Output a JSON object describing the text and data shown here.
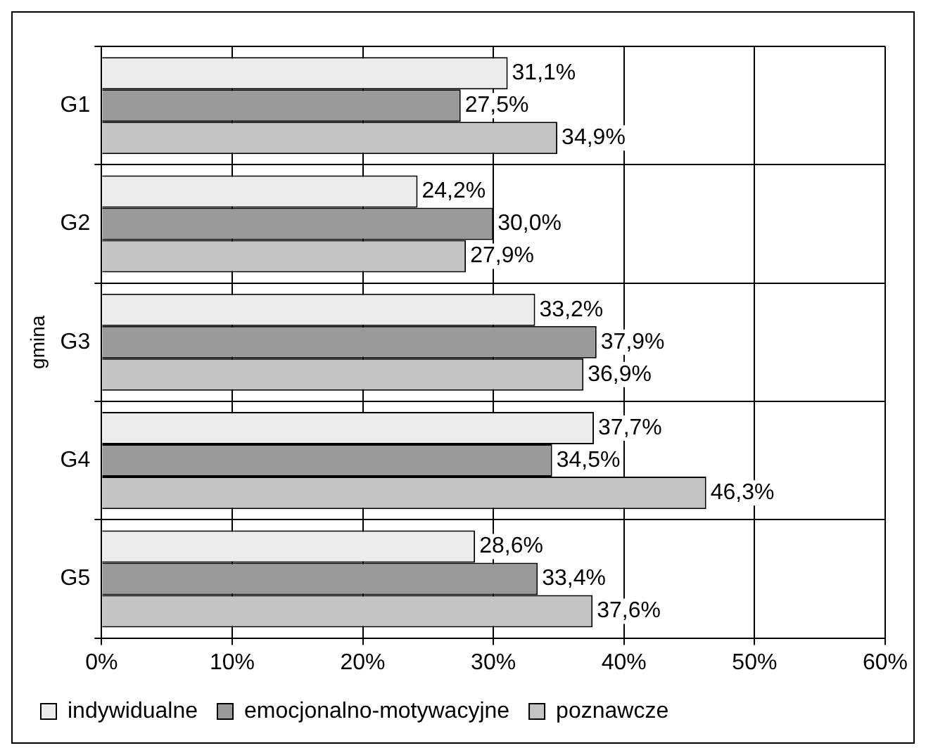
{
  "chart_data": {
    "type": "bar",
    "orientation": "horizontal",
    "ylabel": "gmina",
    "categories": [
      "G1",
      "G2",
      "G3",
      "G4",
      "G5"
    ],
    "series": [
      {
        "name": "indywidualne",
        "color": "#ececec",
        "values": [
          31.1,
          24.2,
          33.2,
          37.7,
          28.6
        ],
        "value_labels": [
          "31,1%",
          "24,2%",
          "33,2%",
          "37,7%",
          "28,6%"
        ]
      },
      {
        "name": "emocjonalno-motywacyjne",
        "color": "#9a9a9a",
        "values": [
          27.5,
          30.0,
          37.9,
          34.5,
          33.4
        ],
        "value_labels": [
          "27,5%",
          "30,0%",
          "37,9%",
          "34,5%",
          "33,4%"
        ]
      },
      {
        "name": "poznawcze",
        "color": "#c4c4c4",
        "values": [
          34.9,
          27.9,
          36.9,
          46.3,
          37.6
        ],
        "value_labels": [
          "34,9%",
          "27,9%",
          "36,9%",
          "46,3%",
          "37,6%"
        ]
      }
    ],
    "xlim": [
      0,
      60
    ],
    "xticks": [
      {
        "value": 0,
        "label": "0%"
      },
      {
        "value": 10,
        "label": "10%"
      },
      {
        "value": 20,
        "label": "20%"
      },
      {
        "value": 30,
        "label": "30%"
      },
      {
        "value": 40,
        "label": "40%"
      },
      {
        "value": 50,
        "label": "50%"
      },
      {
        "value": 60,
        "label": "60%"
      }
    ],
    "grid": true,
    "legend": "bottom"
  }
}
